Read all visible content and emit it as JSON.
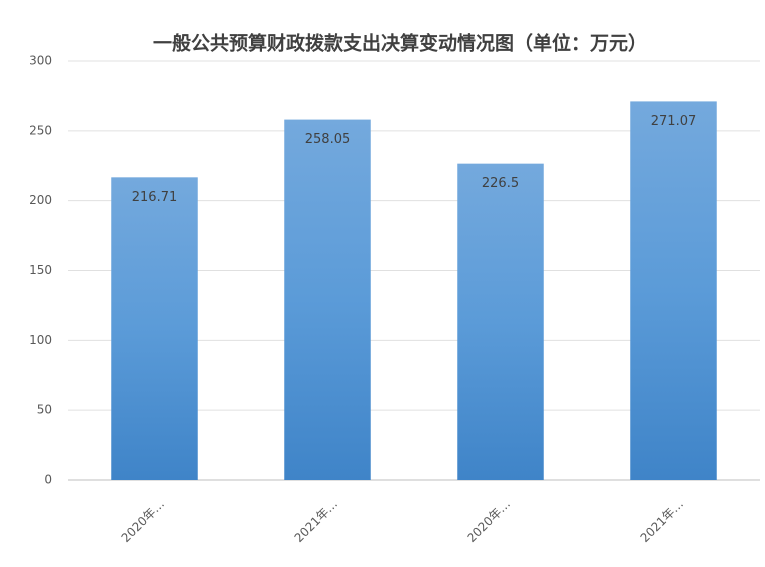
{
  "chart_data": {
    "type": "bar",
    "title": "一般公共预算财政拨款支出决算变动情况图（单位：万元）",
    "categories": [
      "2020年…",
      "2021年…",
      "2020年…",
      "2021年…"
    ],
    "values": [
      216.71,
      258.05,
      226.5,
      271.07
    ],
    "color": "#5b9bd5",
    "ylim": [
      0,
      300
    ],
    "yticks": [
      0,
      50,
      100,
      150,
      200,
      250,
      300
    ],
    "grid": true
  }
}
